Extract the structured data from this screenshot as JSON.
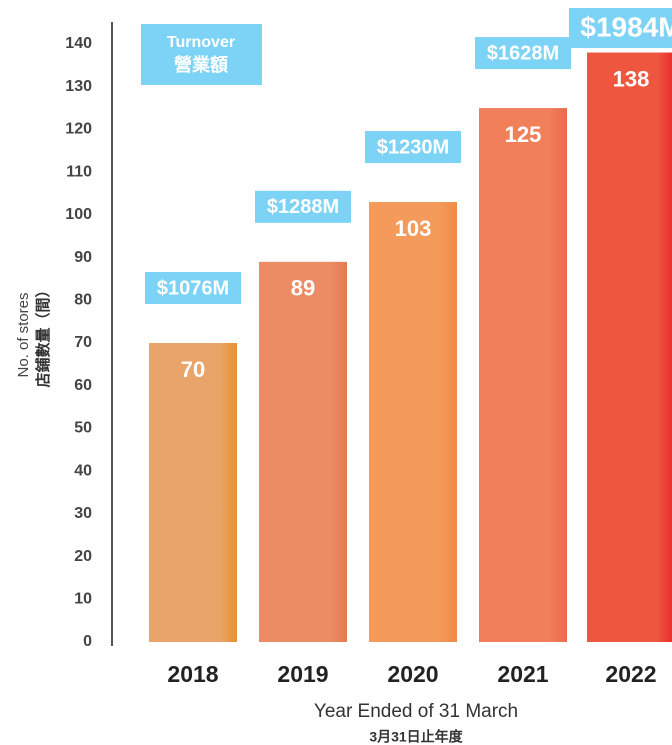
{
  "chart_data": {
    "type": "bar",
    "categories": [
      "2018",
      "2019",
      "2020",
      "2021",
      "2022"
    ],
    "values": [
      70,
      89,
      103,
      125,
      138
    ],
    "colors": [
      "#e9a46a",
      "#ec8c64",
      "#f49a5a",
      "#f07f5a",
      "#ef5640"
    ],
    "edge_colors": [
      "#e8902f",
      "#e6794f",
      "#f08a45",
      "#ea6a4a",
      "#e8262a"
    ],
    "ylim": [
      0,
      140
    ],
    "yticks": [
      0,
      10,
      20,
      30,
      40,
      50,
      60,
      70,
      80,
      90,
      100,
      110,
      120,
      130,
      140
    ],
    "ylabel": "No. of stores",
    "ylabel_zh": "店鋪數量（間）",
    "xlabel": "Year Ended of 31 March",
    "xlabel_zh": "3月31日止年度",
    "turnover": {
      "name": "Turnover",
      "name_zh": "營業額",
      "color": "#7dd3f5",
      "values": [
        1076,
        1288,
        1230,
        1628,
        1984
      ],
      "value_labels": [
        "$1076M",
        "$1288M",
        "$1230M",
        "$1628M",
        "$1984M"
      ]
    }
  }
}
